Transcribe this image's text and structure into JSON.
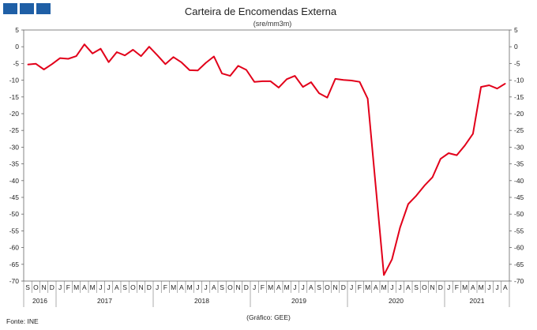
{
  "header": {
    "logo_icon": "ine-squares-logo",
    "logo_color": "#1f5fa6"
  },
  "footer": {
    "source": "Fonte: INE",
    "credit": "(Gráfico: GEE)"
  },
  "chart_data": {
    "type": "line",
    "title": "Carteira de Encomendas  Externa",
    "subtitle": "(sre/mm3m)",
    "xlabel": "",
    "ylabel": "",
    "ylim": [
      -70,
      5
    ],
    "yticks": [
      5,
      0,
      -5,
      -10,
      -15,
      -20,
      -25,
      -30,
      -35,
      -40,
      -45,
      -50,
      -55,
      -60,
      -65,
      -70
    ],
    "grid": false,
    "line_color": "#e2001a",
    "month_letters": [
      "S",
      "O",
      "N",
      "D",
      "J",
      "F",
      "M",
      "A",
      "M",
      "J",
      "J",
      "A",
      "S",
      "O",
      "N",
      "D",
      "J",
      "F",
      "M",
      "A",
      "M",
      "J",
      "J",
      "A",
      "S",
      "O",
      "N",
      "D",
      "J",
      "F",
      "M",
      "A",
      "M",
      "J",
      "J",
      "A",
      "S",
      "O",
      "N",
      "D",
      "J",
      "F",
      "M",
      "A",
      "M",
      "J",
      "J",
      "A",
      "S",
      "O",
      "N",
      "D",
      "J",
      "F",
      "M",
      "A",
      "M",
      "J",
      "J",
      "A"
    ],
    "years": [
      {
        "label": "2016",
        "start": 0,
        "end": 3
      },
      {
        "label": "2017",
        "start": 4,
        "end": 15
      },
      {
        "label": "2018",
        "start": 16,
        "end": 27
      },
      {
        "label": "2019",
        "start": 28,
        "end": 39
      },
      {
        "label": "2020",
        "start": 40,
        "end": 51
      },
      {
        "label": "2021",
        "start": 52,
        "end": 59
      }
    ],
    "series": [
      {
        "values": [
          -5.3,
          -5.1,
          -6.8,
          -5.2,
          -3.4,
          -3.6,
          -2.8,
          0.7,
          -2.0,
          -0.6,
          -4.6,
          -1.6,
          -2.6,
          -0.9,
          -2.8,
          0.0,
          -2.5,
          -5.2,
          -3.1,
          -4.7,
          -7.0,
          -7.1,
          -4.8,
          -2.9,
          -8.0,
          -8.7,
          -5.7,
          -6.9,
          -10.5,
          -10.3,
          -10.3,
          -12.2,
          -9.7,
          -8.7,
          -12.0,
          -10.6,
          -13.9,
          -15.2,
          -9.6,
          -9.9,
          -10.1,
          -10.5,
          -15.5,
          -42.0,
          -68.2,
          -63.5,
          -54.0,
          -47.0,
          -44.5,
          -41.5,
          -39.0,
          -33.5,
          -31.8,
          -32.4,
          -29.5,
          -26.0,
          -12.0,
          -11.5,
          -12.5,
          -11.0
        ]
      }
    ]
  }
}
